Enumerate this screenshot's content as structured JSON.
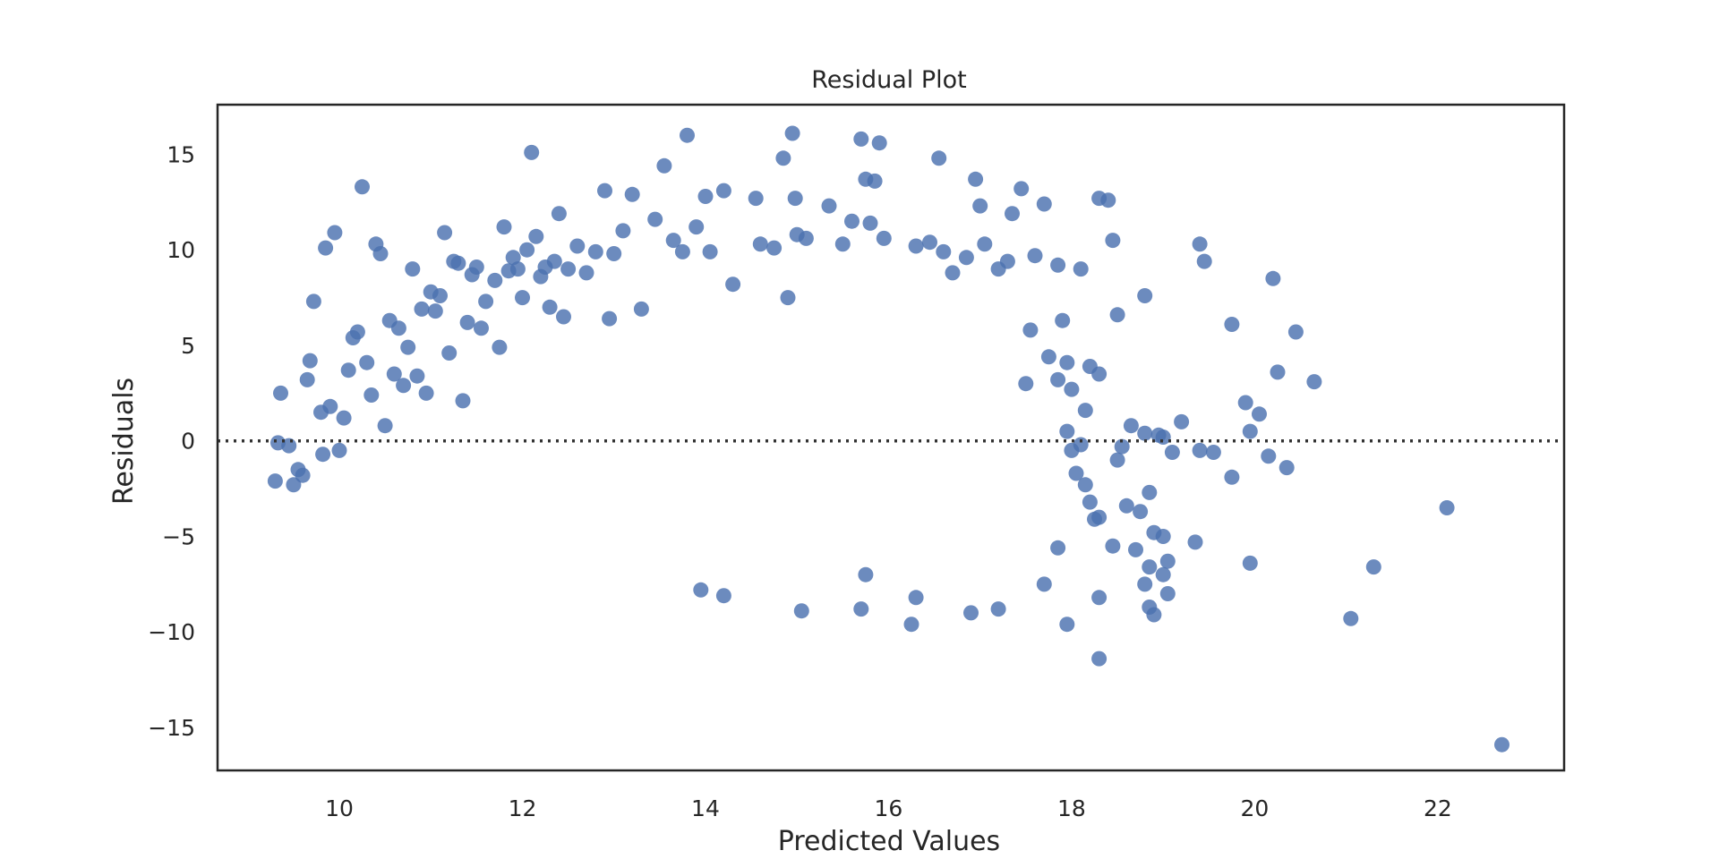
{
  "chart_data": {
    "type": "scatter",
    "title": "Residual Plot",
    "xlabel": "Predicted Values",
    "ylabel": "Residuals",
    "xlim": [
      8.67,
      23.38
    ],
    "ylim": [
      -17.25,
      17.6
    ],
    "xticks": [
      10,
      12,
      14,
      16,
      18,
      20,
      22
    ],
    "yticks": [
      15,
      10,
      5,
      0,
      -5,
      -10,
      -15
    ],
    "xtick_labels": [
      "10",
      "12",
      "14",
      "16",
      "18",
      "20",
      "22"
    ],
    "ytick_labels": [
      "15",
      "10",
      "5",
      "0",
      "−5",
      "−10",
      "−15"
    ],
    "reference_line": {
      "y": 0,
      "style": "dotted"
    },
    "grid": false,
    "colors": {
      "points": "#4c72b0",
      "line": "#333333",
      "frame": "#262626"
    },
    "series": [
      {
        "points": [
          [
            9.33,
            -0.1
          ],
          [
            9.36,
            2.5
          ],
          [
            9.3,
            -2.1
          ],
          [
            9.45,
            -0.25
          ],
          [
            9.5,
            -2.3
          ],
          [
            9.65,
            3.2
          ],
          [
            9.68,
            4.2
          ],
          [
            9.72,
            7.3
          ],
          [
            9.8,
            1.5
          ],
          [
            9.85,
            10.1
          ],
          [
            9.9,
            1.8
          ],
          [
            9.95,
            10.9
          ],
          [
            9.82,
            -0.7
          ],
          [
            9.6,
            -1.8
          ],
          [
            9.55,
            -1.5
          ],
          [
            10.0,
            -0.5
          ],
          [
            10.05,
            1.2
          ],
          [
            10.1,
            3.7
          ],
          [
            10.15,
            5.4
          ],
          [
            10.2,
            5.7
          ],
          [
            10.25,
            13.3
          ],
          [
            10.3,
            4.1
          ],
          [
            10.35,
            2.4
          ],
          [
            10.4,
            10.3
          ],
          [
            10.45,
            9.8
          ],
          [
            10.5,
            0.8
          ],
          [
            10.55,
            6.3
          ],
          [
            10.6,
            3.5
          ],
          [
            10.65,
            5.9
          ],
          [
            10.7,
            2.9
          ],
          [
            10.75,
            4.9
          ],
          [
            10.8,
            9.0
          ],
          [
            10.85,
            3.4
          ],
          [
            10.9,
            6.9
          ],
          [
            10.95,
            2.5
          ],
          [
            11.0,
            7.8
          ],
          [
            11.05,
            6.8
          ],
          [
            11.1,
            7.6
          ],
          [
            11.15,
            10.9
          ],
          [
            11.2,
            4.6
          ],
          [
            11.25,
            9.4
          ],
          [
            11.3,
            9.3
          ],
          [
            11.35,
            2.1
          ],
          [
            11.4,
            6.2
          ],
          [
            11.45,
            8.7
          ],
          [
            11.5,
            9.1
          ],
          [
            11.55,
            5.9
          ],
          [
            11.6,
            7.3
          ],
          [
            11.7,
            8.4
          ],
          [
            11.75,
            4.9
          ],
          [
            11.8,
            11.2
          ],
          [
            11.85,
            8.9
          ],
          [
            11.9,
            9.6
          ],
          [
            11.95,
            9.0
          ],
          [
            12.0,
            7.5
          ],
          [
            12.05,
            10.0
          ],
          [
            12.1,
            15.1
          ],
          [
            12.15,
            10.7
          ],
          [
            12.2,
            8.6
          ],
          [
            12.25,
            9.1
          ],
          [
            12.3,
            7.0
          ],
          [
            12.35,
            9.4
          ],
          [
            12.4,
            11.9
          ],
          [
            12.45,
            6.5
          ],
          [
            12.5,
            9.0
          ],
          [
            12.6,
            10.2
          ],
          [
            12.7,
            8.8
          ],
          [
            12.8,
            9.9
          ],
          [
            12.9,
            13.1
          ],
          [
            12.95,
            6.4
          ],
          [
            13.0,
            9.8
          ],
          [
            13.1,
            11.0
          ],
          [
            13.2,
            12.9
          ],
          [
            13.3,
            6.9
          ],
          [
            13.45,
            11.6
          ],
          [
            13.55,
            14.4
          ],
          [
            13.65,
            10.5
          ],
          [
            13.75,
            9.9
          ],
          [
            13.8,
            16.0
          ],
          [
            13.9,
            11.2
          ],
          [
            14.0,
            12.8
          ],
          [
            14.05,
            9.9
          ],
          [
            14.2,
            13.1
          ],
          [
            14.3,
            8.2
          ],
          [
            14.55,
            12.7
          ],
          [
            14.6,
            10.3
          ],
          [
            14.75,
            10.1
          ],
          [
            14.85,
            14.8
          ],
          [
            14.9,
            7.5
          ],
          [
            14.95,
            16.1
          ],
          [
            14.98,
            12.7
          ],
          [
            15.0,
            10.8
          ],
          [
            15.1,
            10.6
          ],
          [
            15.35,
            12.3
          ],
          [
            15.5,
            10.3
          ],
          [
            15.6,
            11.5
          ],
          [
            15.7,
            15.8
          ],
          [
            15.75,
            13.7
          ],
          [
            15.8,
            11.4
          ],
          [
            15.85,
            13.6
          ],
          [
            15.9,
            15.6
          ],
          [
            15.95,
            10.6
          ],
          [
            16.3,
            10.2
          ],
          [
            16.45,
            10.4
          ],
          [
            16.55,
            14.8
          ],
          [
            16.6,
            9.9
          ],
          [
            16.7,
            8.8
          ],
          [
            16.85,
            9.6
          ],
          [
            16.95,
            13.7
          ],
          [
            17.0,
            12.3
          ],
          [
            17.05,
            10.3
          ],
          [
            17.2,
            9.0
          ],
          [
            17.3,
            9.4
          ],
          [
            17.35,
            11.9
          ],
          [
            17.45,
            13.2
          ],
          [
            17.6,
            9.7
          ],
          [
            17.7,
            12.4
          ],
          [
            17.85,
            9.2
          ],
          [
            17.9,
            6.3
          ],
          [
            18.1,
            9.0
          ],
          [
            18.3,
            12.7
          ],
          [
            18.4,
            12.6
          ],
          [
            18.45,
            10.5
          ],
          [
            18.5,
            6.6
          ],
          [
            18.8,
            7.6
          ],
          [
            19.4,
            10.3
          ],
          [
            19.45,
            9.4
          ],
          [
            19.75,
            6.1
          ],
          [
            20.2,
            8.5
          ],
          [
            20.25,
            3.6
          ],
          [
            20.45,
            5.7
          ],
          [
            20.65,
            3.1
          ],
          [
            19.9,
            2.0
          ],
          [
            20.05,
            1.4
          ],
          [
            19.95,
            0.5
          ],
          [
            18.65,
            0.8
          ],
          [
            18.8,
            0.4
          ],
          [
            19.2,
            1.0
          ],
          [
            19.0,
            0.2
          ],
          [
            19.4,
            -0.5
          ],
          [
            19.55,
            -0.6
          ],
          [
            19.75,
            -1.9
          ],
          [
            20.15,
            -0.8
          ],
          [
            20.35,
            -1.4
          ],
          [
            19.1,
            -0.6
          ],
          [
            18.95,
            0.3
          ],
          [
            18.55,
            -0.3
          ],
          [
            18.6,
            -3.4
          ],
          [
            18.7,
            -5.7
          ],
          [
            18.75,
            -3.7
          ],
          [
            18.85,
            -2.7
          ],
          [
            18.9,
            -4.8
          ],
          [
            19.0,
            -5.0
          ],
          [
            19.05,
            -6.3
          ],
          [
            18.85,
            -6.6
          ],
          [
            19.0,
            -7.0
          ],
          [
            18.8,
            -7.5
          ],
          [
            18.85,
            -8.7
          ],
          [
            18.9,
            -9.1
          ],
          [
            19.05,
            -8.0
          ],
          [
            19.35,
            -5.3
          ],
          [
            19.95,
            -6.4
          ],
          [
            21.05,
            -9.3
          ],
          [
            21.3,
            -6.6
          ],
          [
            22.1,
            -3.5
          ],
          [
            22.7,
            -15.9
          ],
          [
            18.3,
            -11.4
          ],
          [
            17.95,
            -9.6
          ],
          [
            18.3,
            -8.2
          ],
          [
            17.7,
            -7.5
          ],
          [
            17.85,
            -5.6
          ],
          [
            17.2,
            -8.8
          ],
          [
            16.9,
            -9.0
          ],
          [
            16.25,
            -9.6
          ],
          [
            16.3,
            -8.2
          ],
          [
            15.05,
            -8.9
          ],
          [
            15.7,
            -8.8
          ],
          [
            15.75,
            -7.0
          ],
          [
            14.2,
            -8.1
          ],
          [
            13.95,
            -7.8
          ],
          [
            18.0,
            -0.5
          ],
          [
            18.05,
            -1.7
          ],
          [
            18.15,
            -2.3
          ],
          [
            18.2,
            -3.2
          ],
          [
            18.25,
            -4.1
          ],
          [
            18.45,
            -5.5
          ],
          [
            18.5,
            -1.0
          ],
          [
            18.3,
            -4.0
          ],
          [
            18.1,
            -0.2
          ],
          [
            17.95,
            0.5
          ],
          [
            18.0,
            2.7
          ],
          [
            18.15,
            1.6
          ],
          [
            17.85,
            3.2
          ],
          [
            17.75,
            4.4
          ],
          [
            17.95,
            4.1
          ],
          [
            18.2,
            3.9
          ],
          [
            18.3,
            3.5
          ],
          [
            17.55,
            5.8
          ],
          [
            17.5,
            3.0
          ]
        ]
      }
    ]
  }
}
